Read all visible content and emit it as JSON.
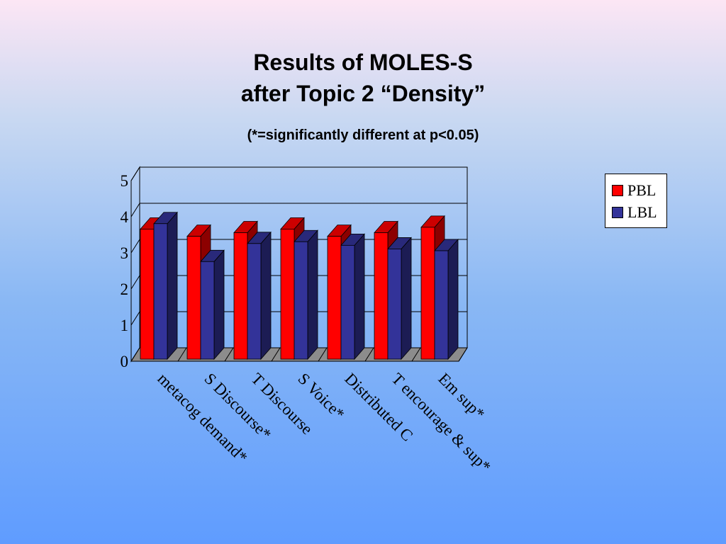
{
  "slide": {
    "title_line1": "Results of MOLES-S",
    "title_line2": "after Topic 2 “Density”",
    "subtitle": "(*=significantly different at p<0.05)"
  },
  "chart_data": {
    "type": "bar",
    "style": "3d-clustered",
    "categories": [
      "metacog demand*",
      "S Discourse*",
      "T Discourse",
      "S Voice*",
      "Distributed C",
      "T encourage & sup*",
      "Em sup*"
    ],
    "series": [
      {
        "name": "PBL",
        "color": "#ff0000",
        "values": [
          3.6,
          3.4,
          3.5,
          3.6,
          3.4,
          3.5,
          3.65
        ]
      },
      {
        "name": "LBL",
        "color": "#333399",
        "values": [
          3.75,
          2.7,
          3.2,
          3.25,
          3.15,
          3.05,
          3.0
        ]
      }
    ],
    "ylim": [
      0,
      5
    ],
    "yticks": [
      "0",
      "1",
      "2",
      "3",
      "4",
      "5"
    ],
    "grid": true,
    "legend_position": "right"
  }
}
